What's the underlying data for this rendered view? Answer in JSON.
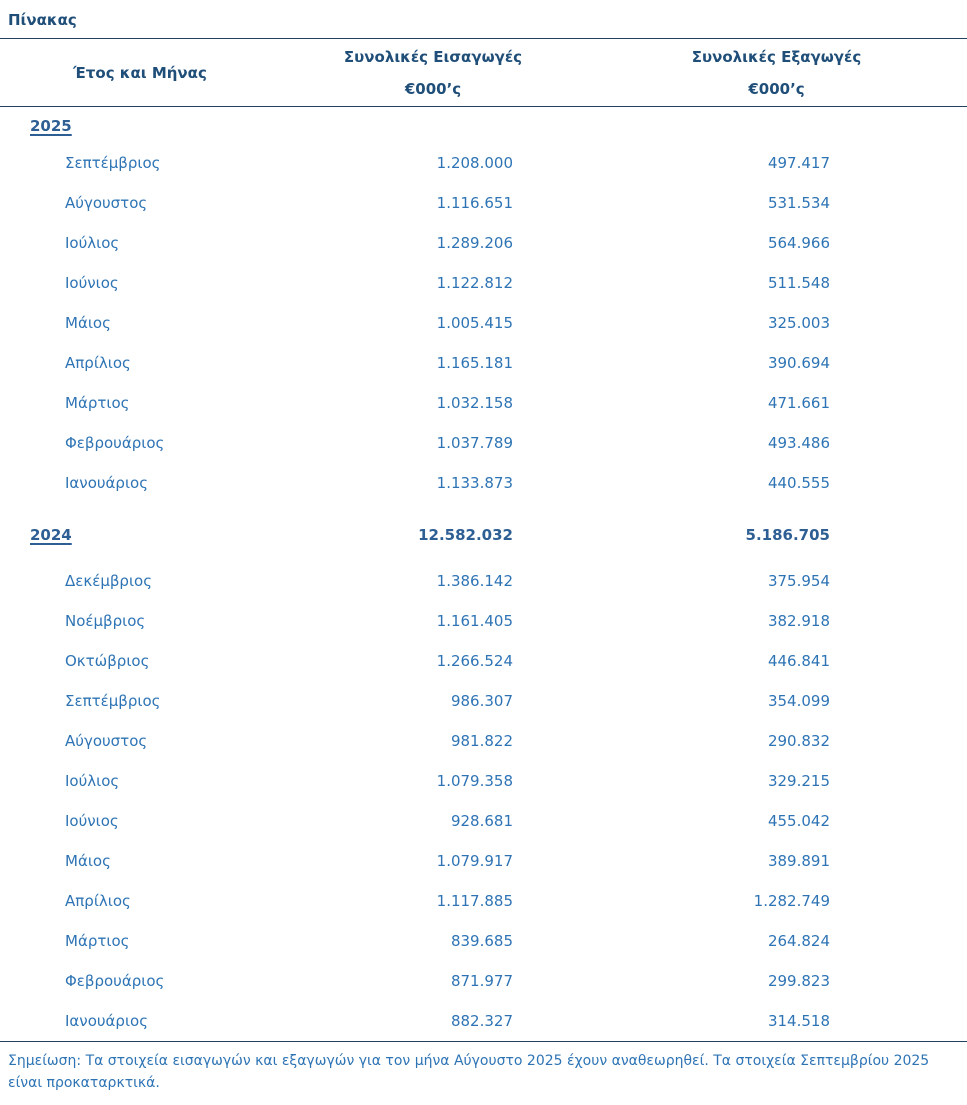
{
  "title": "Πίνακας",
  "colors": {
    "title_dark_blue": "#1F4E79",
    "year_blue": "#2E5F94",
    "body_blue": "#2E74B5",
    "rule_color": "#24405E"
  },
  "table": {
    "header": {
      "year_month": "Έτος και Μήνας",
      "imports": "Συνολικές Εισαγωγές",
      "exports": "Συνολικές Εξαγωγές",
      "unit": "€000’ς"
    },
    "sections": [
      {
        "year": "2025",
        "total_imports": "",
        "total_exports": "",
        "rows": [
          {
            "month": "Σεπτέμβριος",
            "imports": "1.208.000",
            "exports": "497.417"
          },
          {
            "month": "Αύγουστος",
            "imports": "1.116.651",
            "exports": "531.534"
          },
          {
            "month": "Ιούλιος",
            "imports": "1.289.206",
            "exports": "564.966"
          },
          {
            "month": "Ιούνιος",
            "imports": "1.122.812",
            "exports": "511.548"
          },
          {
            "month": "Μάιος",
            "imports": "1.005.415",
            "exports": "325.003"
          },
          {
            "month": "Απρίλιος",
            "imports": "1.165.181",
            "exports": "390.694"
          },
          {
            "month": "Μάρτιος",
            "imports": "1.032.158",
            "exports": "471.661"
          },
          {
            "month": "Φεβρουάριος",
            "imports": "1.037.789",
            "exports": "493.486"
          },
          {
            "month": "Ιανουάριος",
            "imports": "1.133.873",
            "exports": "440.555"
          }
        ]
      },
      {
        "year": "2024",
        "total_imports": "12.582.032",
        "total_exports": "5.186.705",
        "rows": [
          {
            "month": "Δεκέμβριος",
            "imports": "1.386.142",
            "exports": "375.954"
          },
          {
            "month": "Νοέμβριος",
            "imports": "1.161.405",
            "exports": "382.918"
          },
          {
            "month": "Οκτώβριος",
            "imports": "1.266.524",
            "exports": "446.841"
          },
          {
            "month": "Σεπτέμβριος",
            "imports": "986.307",
            "exports": "354.099"
          },
          {
            "month": "Αύγουστος",
            "imports": "981.822",
            "exports": "290.832"
          },
          {
            "month": "Ιούλιος",
            "imports": "1.079.358",
            "exports": "329.215"
          },
          {
            "month": "Ιούνιος",
            "imports": "928.681",
            "exports": "455.042"
          },
          {
            "month": "Μάιος",
            "imports": "1.079.917",
            "exports": "389.891"
          },
          {
            "month": "Απρίλιος",
            "imports": "1.117.885",
            "exports": "1.282.749"
          },
          {
            "month": "Μάρτιος",
            "imports": "839.685",
            "exports": "264.824"
          },
          {
            "month": "Φεβρουάριος",
            "imports": "871.977",
            "exports": "299.823"
          },
          {
            "month": "Ιανουάριος",
            "imports": "882.327",
            "exports": "314.518"
          }
        ]
      }
    ]
  },
  "note": "Σημείωση: Τα στοιχεία εισαγωγών και εξαγωγών για τον μήνα Αύγουστο 2025 έχουν αναθεωρηθεί. Τα στοιχεία Σεπτεμβρίου 2025 είναι προκαταρκτικά."
}
